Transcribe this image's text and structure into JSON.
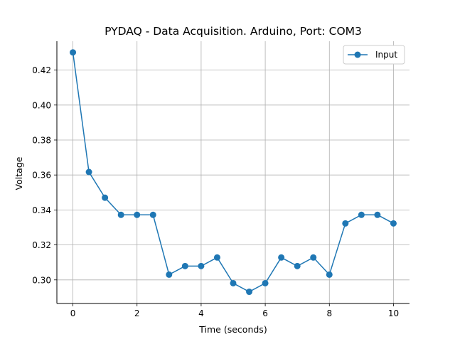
{
  "chart_data": {
    "type": "line",
    "title": "PYDAQ - Data Acquisition. Arduino, Port: COM3",
    "xlabel": "Time (seconds)",
    "ylabel": "Voltage",
    "xlim": [
      -0.5,
      10.5
    ],
    "ylim": [
      0.2865,
      0.4365
    ],
    "x_ticks": [
      0,
      2,
      4,
      6,
      8,
      10
    ],
    "y_ticks": [
      0.3,
      0.32,
      0.34,
      0.36,
      0.38,
      0.4,
      0.42
    ],
    "y_tick_labels": [
      "0.30",
      "0.32",
      "0.34",
      "0.36",
      "0.38",
      "0.40",
      "0.42"
    ],
    "grid": true,
    "legend": "top-right",
    "series": [
      {
        "name": "Input",
        "color": "#1f77b4",
        "marker": "circle",
        "x": [
          0,
          0.5,
          1,
          1.5,
          2,
          2.5,
          3,
          3.5,
          4,
          4.5,
          5,
          5.5,
          6,
          6.5,
          7,
          7.5,
          8,
          8.5,
          9,
          9.5,
          10
        ],
        "y": [
          0.4301,
          0.3617,
          0.347,
          0.3372,
          0.3372,
          0.3372,
          0.303,
          0.3079,
          0.3079,
          0.3128,
          0.2981,
          0.2932,
          0.2981,
          0.3128,
          0.3079,
          0.3128,
          0.303,
          0.3323,
          0.3372,
          0.3372,
          0.3323
        ]
      }
    ]
  }
}
